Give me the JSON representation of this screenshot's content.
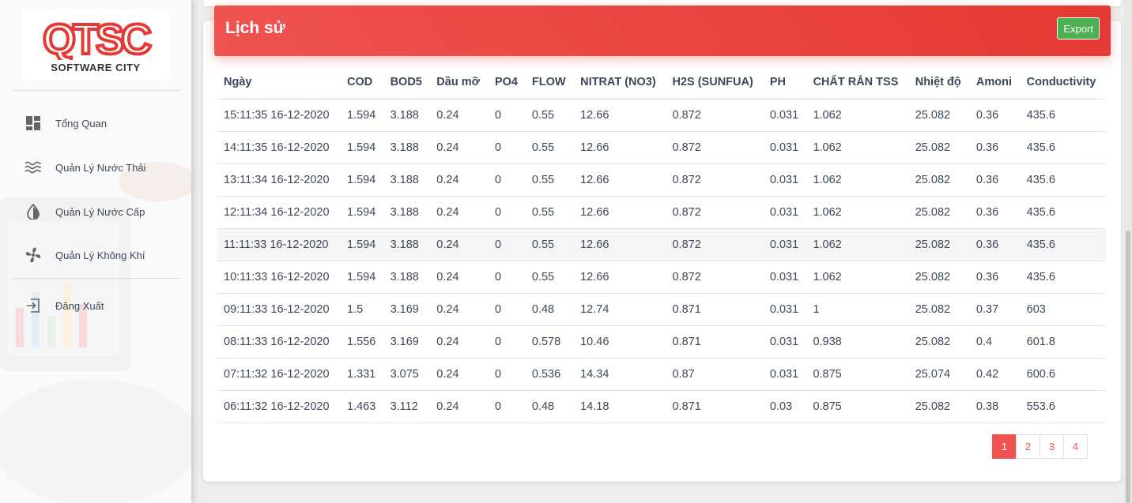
{
  "brand": {
    "logo_text": "QTSC",
    "subtitle": "SOFTWARE CITY",
    "accent": "#e53935"
  },
  "sidebar": {
    "items": [
      {
        "label": "Tổng Quan",
        "icon": "dashboard-icon"
      },
      {
        "label": "Quản Lý Nước Thải",
        "icon": "waves-icon"
      },
      {
        "label": "Quản Lý Nước Cấp",
        "icon": "water-drop-icon"
      },
      {
        "label": "Quản Lý Không Khí",
        "icon": "fan-icon"
      },
      {
        "label": "Đăng Xuất",
        "icon": "logout-icon"
      }
    ]
  },
  "card": {
    "title": "Lịch sử",
    "export_label": "Export",
    "header_color": "#ef5350",
    "export_color": "#4caf50"
  },
  "table": {
    "columns": [
      "Ngày",
      "COD",
      "BOD5",
      "Dầu mỡ",
      "PO4",
      "FLOW",
      "NITRAT (NO3)",
      "H2S (SUNFUA)",
      "PH",
      "CHẤT RẮN TSS",
      "Nhiệt độ",
      "Amoni",
      "Conductivity"
    ],
    "rows": [
      [
        "15:11:35 16-12-2020",
        "1.594",
        "3.188",
        "0.24",
        "0",
        "0.55",
        "12.66",
        "0.872",
        "0.031",
        "1.062",
        "25.082",
        "0.36",
        "435.6"
      ],
      [
        "14:11:35 16-12-2020",
        "1.594",
        "3.188",
        "0.24",
        "0",
        "0.55",
        "12.66",
        "0.872",
        "0.031",
        "1.062",
        "25.082",
        "0.36",
        "435.6"
      ],
      [
        "13:11:34 16-12-2020",
        "1.594",
        "3.188",
        "0.24",
        "0",
        "0.55",
        "12.66",
        "0.872",
        "0.031",
        "1.062",
        "25.082",
        "0.36",
        "435.6"
      ],
      [
        "12:11:34 16-12-2020",
        "1.594",
        "3.188",
        "0.24",
        "0",
        "0.55",
        "12.66",
        "0.872",
        "0.031",
        "1.062",
        "25.082",
        "0.36",
        "435.6"
      ],
      [
        "11:11:33 16-12-2020",
        "1.594",
        "3.188",
        "0.24",
        "0",
        "0.55",
        "12.66",
        "0.872",
        "0.031",
        "1.062",
        "25.082",
        "0.36",
        "435.6"
      ],
      [
        "10:11:33 16-12-2020",
        "1.594",
        "3.188",
        "0.24",
        "0",
        "0.55",
        "12.66",
        "0.872",
        "0.031",
        "1.062",
        "25.082",
        "0.36",
        "435.6"
      ],
      [
        "09:11:33 16-12-2020",
        "1.5",
        "3.169",
        "0.24",
        "0",
        "0.48",
        "12.74",
        "0.871",
        "0.031",
        "1",
        "25.082",
        "0.37",
        "603"
      ],
      [
        "08:11:33 16-12-2020",
        "1.556",
        "3.169",
        "0.24",
        "0",
        "0.578",
        "10.46",
        "0.871",
        "0.031",
        "0.938",
        "25.082",
        "0.4",
        "601.8"
      ],
      [
        "07:11:32 16-12-2020",
        "1.331",
        "3.075",
        "0.24",
        "0",
        "0.536",
        "14.34",
        "0.87",
        "0.031",
        "0.875",
        "25.074",
        "0.42",
        "600.6"
      ],
      [
        "06:11:32 16-12-2020",
        "1.463",
        "3.112",
        "0.24",
        "0",
        "0.48",
        "14.18",
        "0.871",
        "0.03",
        "0.875",
        "25.082",
        "0.38",
        "553.6"
      ]
    ],
    "highlighted_row": 4
  },
  "pagination": {
    "pages": [
      "1",
      "2",
      "3",
      "4"
    ],
    "active": 0
  }
}
